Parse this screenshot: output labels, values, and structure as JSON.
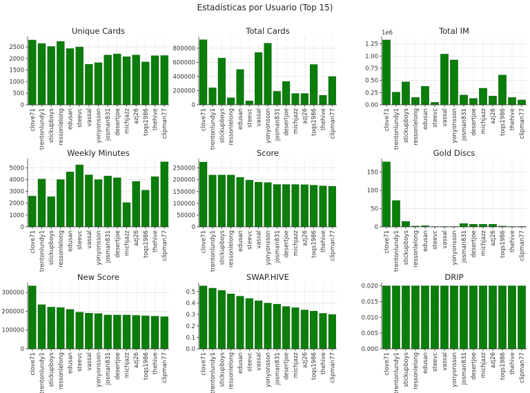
{
  "figure": {
    "title": "Estadísticas por Usuario (Top 15)",
    "bar_color": "#0a7d0a",
    "bar_edge_color": "#045204"
  },
  "chart_data": [
    {
      "type": "bar",
      "title": "Unique Cards",
      "categories": [
        "clove71",
        "trentonlundy1",
        "stickupboys",
        "ressonlelong",
        "edusan",
        "steevc",
        "vassal",
        "yonyonsson",
        "josman831",
        "desertjoe",
        "michjazz",
        "azj26",
        "toqs1986",
        "thehive",
        "clipman77"
      ],
      "values": [
        2800,
        2650,
        2520,
        2740,
        2430,
        2500,
        1750,
        1820,
        2150,
        2200,
        2080,
        2150,
        1850,
        2120,
        2130
      ],
      "yticks": [
        0,
        500,
        1000,
        1500,
        2000,
        2500
      ],
      "ytick_labels": [
        "0",
        "500",
        "1000",
        "1500",
        "2000",
        "2500"
      ],
      "ylim": [
        0,
        2950
      ],
      "multiplier": ""
    },
    {
      "type": "bar",
      "title": "Total Cards",
      "categories": [
        "clove71",
        "trentonlundy1",
        "stickupboys",
        "ressonlelong",
        "edusan",
        "steevc",
        "vassal",
        "yonyonsson",
        "josman831",
        "desertjoe",
        "michjazz",
        "azj26",
        "toqs1986",
        "thehive",
        "clipman77"
      ],
      "values": [
        920000,
        240000,
        660000,
        100000,
        500000,
        55000,
        740000,
        870000,
        190000,
        330000,
        160000,
        160000,
        570000,
        135000,
        400000
      ],
      "yticks": [
        0,
        200000,
        400000,
        600000,
        800000
      ],
      "ytick_labels": [
        "0",
        "200000",
        "400000",
        "600000",
        "800000"
      ],
      "ylim": [
        0,
        965000
      ],
      "multiplier": ""
    },
    {
      "type": "bar",
      "title": "Total IM",
      "categories": [
        "clove71",
        "trentonlundy1",
        "stickupboys",
        "ressonlelong",
        "edusan",
        "steevc",
        "vassal",
        "yonyonsson",
        "josman831",
        "desertjoe",
        "michjazz",
        "azj26",
        "toqs1986",
        "thehive",
        "clipman77"
      ],
      "values": [
        1330000,
        260000,
        470000,
        150000,
        380000,
        50000,
        1040000,
        920000,
        200000,
        130000,
        340000,
        180000,
        610000,
        150000,
        100000
      ],
      "yticks": [
        0,
        250000,
        500000,
        750000,
        1000000,
        1250000
      ],
      "ytick_labels": [
        "0.00",
        "0.25",
        "0.50",
        "0.75",
        "1.00",
        "1.25"
      ],
      "ylim": [
        0,
        1400000
      ],
      "multiplier": "1e6"
    },
    {
      "type": "bar",
      "title": "Weekly Minutes",
      "categories": [
        "clove71",
        "trentonlundy1",
        "stickupboys",
        "ressonlelong",
        "edusan",
        "steevc",
        "vassal",
        "yonyonsson",
        "josman831",
        "desertjoe",
        "michjazz",
        "azj26",
        "toqs1986",
        "thehive",
        "clipman77"
      ],
      "values": [
        2600,
        4050,
        2550,
        4000,
        4650,
        5250,
        4400,
        4000,
        4300,
        4150,
        2050,
        3850,
        3100,
        4250,
        5500
      ],
      "yticks": [
        0,
        1000,
        2000,
        3000,
        4000,
        5000
      ],
      "ytick_labels": [
        "0",
        "1000",
        "2000",
        "3000",
        "4000",
        "5000"
      ],
      "ylim": [
        0,
        5780
      ],
      "multiplier": ""
    },
    {
      "type": "bar",
      "title": "Score",
      "categories": [
        "clove71",
        "trentonlundy1",
        "stickupboys",
        "ressonlelong",
        "edusan",
        "steevc",
        "vassal",
        "yonyonsson",
        "josman831",
        "desertjoe",
        "michjazz",
        "azj26",
        "toqs1986",
        "thehive",
        "clipman77"
      ],
      "values": [
        275000,
        220000,
        220000,
        220000,
        210000,
        198000,
        190000,
        188000,
        180000,
        180000,
        180000,
        179000,
        177000,
        174000,
        172000
      ],
      "yticks": [
        0,
        50000,
        100000,
        150000,
        200000,
        250000
      ],
      "ytick_labels": [
        "0",
        "50000",
        "100000",
        "150000",
        "200000",
        "250000"
      ],
      "ylim": [
        0,
        290000
      ],
      "multiplier": ""
    },
    {
      "type": "bar",
      "title": "Gold Discs",
      "categories": [
        "clove71",
        "trentonlundy1",
        "stickupboys",
        "ressonlelong",
        "edusan",
        "steevc",
        "vassal",
        "yonyonsson",
        "josman831",
        "desertjoe",
        "michjazz",
        "azj26",
        "toqs1986",
        "thehive",
        "clipman77"
      ],
      "values": [
        178,
        72,
        15,
        2,
        3,
        1,
        1,
        1,
        9,
        7,
        7,
        7,
        2,
        1,
        1
      ],
      "yticks": [
        0,
        50,
        100,
        150
      ],
      "ytick_labels": [
        "0",
        "50",
        "100",
        "150"
      ],
      "ylim": [
        0,
        187
      ],
      "multiplier": ""
    },
    {
      "type": "bar",
      "title": "New Score",
      "categories": [
        "clove71",
        "trentonlundy1",
        "stickupboys",
        "ressonlelong",
        "edusan",
        "steevc",
        "vassal",
        "yonyonsson",
        "josman831",
        "desertjoe",
        "michjazz",
        "azj26",
        "toqs1986",
        "thehive",
        "clipman77"
      ],
      "values": [
        335000,
        235000,
        222000,
        220000,
        210000,
        195000,
        190000,
        188000,
        180000,
        180000,
        180000,
        178000,
        176000,
        174000,
        171000
      ],
      "yticks": [
        0,
        100000,
        200000,
        300000
      ],
      "ytick_labels": [
        "0",
        "100000",
        "200000",
        "300000"
      ],
      "ylim": [
        0,
        352000
      ],
      "multiplier": ""
    },
    {
      "type": "bar",
      "title": "SWAP.HIVE",
      "categories": [
        "clove71",
        "trentonlundy1",
        "stickupboys",
        "ressonlelong",
        "edusan",
        "steevc",
        "vassal",
        "yonyonsson",
        "josman831",
        "desertjoe",
        "michjazz",
        "azj26",
        "toqs1986",
        "thehive",
        "clipman77"
      ],
      "values": [
        0.55,
        0.53,
        0.51,
        0.48,
        0.46,
        0.44,
        0.42,
        0.4,
        0.39,
        0.37,
        0.36,
        0.34,
        0.33,
        0.31,
        0.3
      ],
      "yticks": [
        0,
        0.1,
        0.2,
        0.3,
        0.4,
        0.5
      ],
      "ytick_labels": [
        "0.0",
        "0.1",
        "0.2",
        "0.3",
        "0.4",
        "0.5"
      ],
      "ylim": [
        0,
        0.578
      ],
      "multiplier": ""
    },
    {
      "type": "bar",
      "title": "DRIP",
      "categories": [
        "clove71",
        "trentonlundy1",
        "stickupboys",
        "ressonlelong",
        "edusan",
        "steevc",
        "vassal",
        "yonyonsson",
        "josman831",
        "desertjoe",
        "michjazz",
        "azj26",
        "toqs1986",
        "thehive",
        "clipman77"
      ],
      "values": [
        0.02,
        0.02,
        0.02,
        0.02,
        0.02,
        0.02,
        0.02,
        0.02,
        0.02,
        0.02,
        0.02,
        0.02,
        0.02,
        0.02,
        0.02
      ],
      "yticks": [
        0,
        0.005,
        0.01,
        0.015,
        0.02
      ],
      "ytick_labels": [
        "0.000",
        "0.005",
        "0.010",
        "0.015",
        "0.020"
      ],
      "ylim": [
        0,
        0.021
      ],
      "multiplier": ""
    }
  ]
}
